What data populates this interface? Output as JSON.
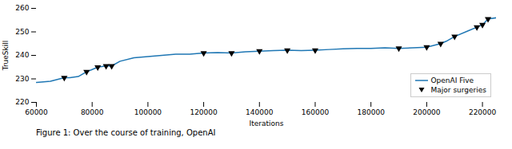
{
  "chart_data": {
    "type": "line",
    "x": [
      60000,
      65000,
      70000,
      72000,
      75000,
      78000,
      80000,
      82000,
      85000,
      87000,
      90000,
      95000,
      100000,
      105000,
      110000,
      115000,
      120000,
      125000,
      130000,
      135000,
      140000,
      145000,
      150000,
      155000,
      160000,
      165000,
      170000,
      175000,
      180000,
      185000,
      190000,
      195000,
      200000,
      205000,
      207000,
      210000,
      215000,
      218000,
      220000,
      222000,
      225000
    ],
    "series": [
      {
        "name": "OpenAI Five",
        "type": "line",
        "color": "#1f77b4",
        "values": [
          228.5,
          229.0,
          230.5,
          230.5,
          231.0,
          233.0,
          234.0,
          235.0,
          235.5,
          235.5,
          237.5,
          239.0,
          239.5,
          240.0,
          240.5,
          240.5,
          241.0,
          241.2,
          241.0,
          241.5,
          241.8,
          242.0,
          242.2,
          242.0,
          242.2,
          242.5,
          242.8,
          243.0,
          243.0,
          243.2,
          243.0,
          243.2,
          243.5,
          245.0,
          246.0,
          248.0,
          250.5,
          252.0,
          253.0,
          255.5,
          256.0
        ]
      },
      {
        "name": "Major surgeries",
        "type": "scatter",
        "color": "black",
        "marker": "triangle_down",
        "x": [
          70000,
          78000,
          82000,
          85000,
          87000,
          120000,
          130000,
          140000,
          150000,
          160000,
          190000,
          200000,
          205000,
          210000,
          218000,
          220000,
          222000
        ],
        "values": [
          230.5,
          233.0,
          235.0,
          235.5,
          235.5,
          241.0,
          241.0,
          241.8,
          242.2,
          242.2,
          243.0,
          243.5,
          245.0,
          248.0,
          252.0,
          253.0,
          255.5
        ]
      }
    ],
    "xlabel": "Iterations",
    "ylabel": "TrueSkill",
    "xlim": [
      60000,
      225000
    ],
    "ylim": [
      220,
      260
    ],
    "xticks": [
      60000,
      80000,
      100000,
      120000,
      140000,
      160000,
      180000,
      200000,
      220000
    ],
    "yticks": [
      220,
      230,
      240,
      250,
      260
    ],
    "grid": false,
    "legend": "lower right",
    "caption": "Figure 1: Over the course of training, OpenAI"
  }
}
